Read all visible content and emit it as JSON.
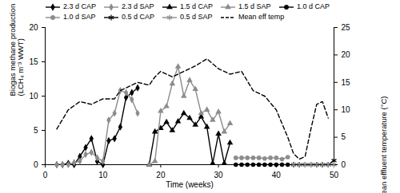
{
  "chart_data": {
    "type": "line",
    "x_label": "Time (weeks)",
    "y_label": "Biogas methane production\n(LCH₄ m⁻³ WWT)",
    "y2_label": "Mean effluent temperature (°C)",
    "xlim": [
      0,
      50
    ],
    "xticks": [
      0,
      10,
      20,
      30,
      40,
      50
    ],
    "ylim": [
      0,
      20
    ],
    "yticks": [
      0,
      5,
      10,
      15,
      20
    ],
    "y2lim": [
      0,
      25
    ],
    "y2ticks": [
      0,
      5,
      10,
      15,
      20,
      25
    ],
    "legend": "top",
    "series": [
      {
        "name": "2.3 d CAP",
        "color": "#000000",
        "marker": "diamond",
        "line_style": "solid",
        "x": [
          2,
          3,
          4,
          5,
          6,
          7,
          8,
          9,
          10,
          11,
          12,
          13,
          14,
          15,
          16
        ],
        "values": [
          0,
          0,
          0.2,
          0,
          1.2,
          2.5,
          3.8,
          0.5,
          0,
          3.5,
          3.8,
          5.5,
          9.8,
          10.5,
          11.2
        ]
      },
      {
        "name": "2.3 d SAP",
        "color": "#8c8c8c",
        "marker": "diamond",
        "line_style": "solid",
        "x": [
          2,
          3,
          4,
          5,
          6,
          7,
          8,
          9,
          10,
          11,
          12,
          13,
          14,
          15,
          16
        ],
        "values": [
          0,
          0,
          0,
          0.3,
          0.5,
          1.5,
          1.8,
          1,
          0.5,
          6.5,
          7.5,
          10.8,
          10.5,
          9.5,
          7.5
        ]
      },
      {
        "name": "1.5 d CAP",
        "color": "#000000",
        "marker": "triangle",
        "line_style": "solid",
        "x": [
          18,
          19,
          20,
          21,
          22,
          23,
          24,
          25,
          26,
          27,
          28,
          29,
          30,
          31,
          32
        ],
        "values": [
          0,
          4.8,
          5.3,
          6.2,
          5,
          6.3,
          7.5,
          6.8,
          5.8,
          7,
          5.5,
          0.2,
          4.5,
          0.2,
          3.2
        ]
      },
      {
        "name": "1.5 d SAP",
        "color": "#8c8c8c",
        "marker": "triangle",
        "line_style": "solid",
        "x": [
          18,
          19,
          20,
          21,
          22,
          23,
          24,
          25,
          26,
          27,
          28,
          29,
          30,
          31,
          32
        ],
        "values": [
          0,
          0.5,
          7.8,
          8.5,
          11.8,
          14.3,
          10,
          12.3,
          11,
          7.5,
          8,
          6.5,
          7.7,
          4.8,
          6
        ]
      },
      {
        "name": "1.0 d CAP",
        "color": "#000000",
        "marker": "circle",
        "line_style": "solid",
        "x": [
          33,
          34,
          35,
          36,
          37,
          38,
          39,
          40,
          41,
          42
        ],
        "values": [
          0,
          0,
          0,
          0,
          0,
          0,
          0,
          0,
          0,
          0
        ]
      },
      {
        "name": "1.0 d SAP",
        "color": "#8c8c8c",
        "marker": "circle",
        "line_style": "solid",
        "x": [
          33,
          34,
          35,
          36,
          37,
          38,
          39,
          40,
          41,
          42
        ],
        "values": [
          1,
          1,
          1,
          1,
          1,
          0.9,
          1,
          1,
          0.8,
          1.1
        ]
      },
      {
        "name": "0.5 d CAP",
        "color": "#000000",
        "marker": "asterisk",
        "line_style": "solid",
        "x": [
          43,
          44,
          45,
          46,
          47,
          48,
          49,
          50
        ],
        "values": [
          0,
          0,
          0,
          0,
          0,
          0,
          0,
          0.6
        ]
      },
      {
        "name": "0.5 d SAP",
        "color": "#8c8c8c",
        "marker": "asterisk",
        "line_style": "solid",
        "x": [
          43,
          44,
          45,
          46,
          47,
          48,
          49,
          50
        ],
        "values": [
          0,
          0,
          0,
          0,
          0,
          0,
          0,
          0
        ]
      },
      {
        "name": "Mean eff temp",
        "color": "#000000",
        "marker": "none",
        "line_style": "dashed",
        "axis": "y2",
        "x": [
          2,
          4,
          6,
          8,
          10,
          12,
          13,
          14,
          16,
          18,
          19,
          20,
          22,
          24,
          26,
          28,
          30,
          32,
          34,
          36,
          38,
          40,
          42,
          43,
          44,
          45,
          46,
          47,
          48,
          49
        ],
        "values": [
          6.5,
          10,
          11.5,
          11,
          12,
          12,
          13.5,
          14,
          15,
          14.5,
          16,
          17,
          16,
          17,
          18,
          19.3,
          17.5,
          16.5,
          17,
          13.5,
          12.5,
          10,
          5,
          2,
          1,
          1.5,
          6.5,
          11,
          11.5,
          8.5
        ]
      }
    ]
  }
}
